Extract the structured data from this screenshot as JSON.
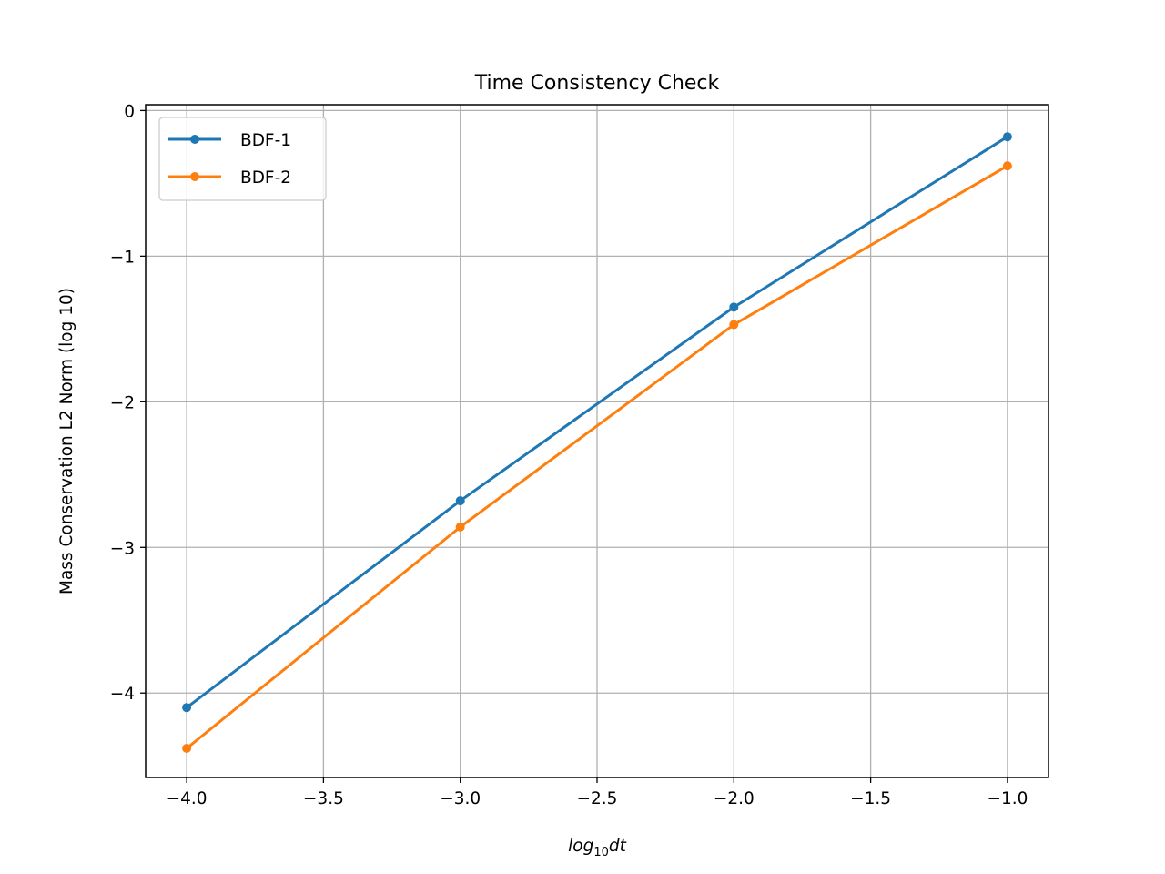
{
  "chart_data": {
    "type": "line",
    "title": "Time Consistency Check",
    "xlabel": {
      "base": "log",
      "subscript": "10",
      "suffix": "dt"
    },
    "ylabel": "Mass Conservation L2 Norm (log 10)",
    "x": [
      -4.0,
      -3.0,
      -2.0,
      -1.0
    ],
    "series": [
      {
        "name": "BDF-1",
        "color": "#1f77b4",
        "values": [
          -4.1,
          -2.68,
          -1.35,
          -0.18
        ]
      },
      {
        "name": "BDF-2",
        "color": "#ff7f0e",
        "values": [
          -4.38,
          -2.86,
          -1.47,
          -0.38
        ]
      }
    ],
    "xlim": [
      -4.15,
      -0.85
    ],
    "ylim": [
      -4.58,
      0.04
    ],
    "xticks": [
      -4.0,
      -3.5,
      -3.0,
      -2.5,
      -2.0,
      -1.5,
      -1.0
    ],
    "xtick_labels": [
      "−4.0",
      "−3.5",
      "−3.0",
      "−2.5",
      "−2.0",
      "−1.5",
      "−1.0"
    ],
    "yticks": [
      0,
      -1,
      -2,
      -3,
      -4
    ],
    "ytick_labels": [
      "0",
      "−1",
      "−2",
      "−3",
      "−4"
    ],
    "grid": true,
    "legend_position": "top-left",
    "grid_color": "#b0b0b0"
  }
}
